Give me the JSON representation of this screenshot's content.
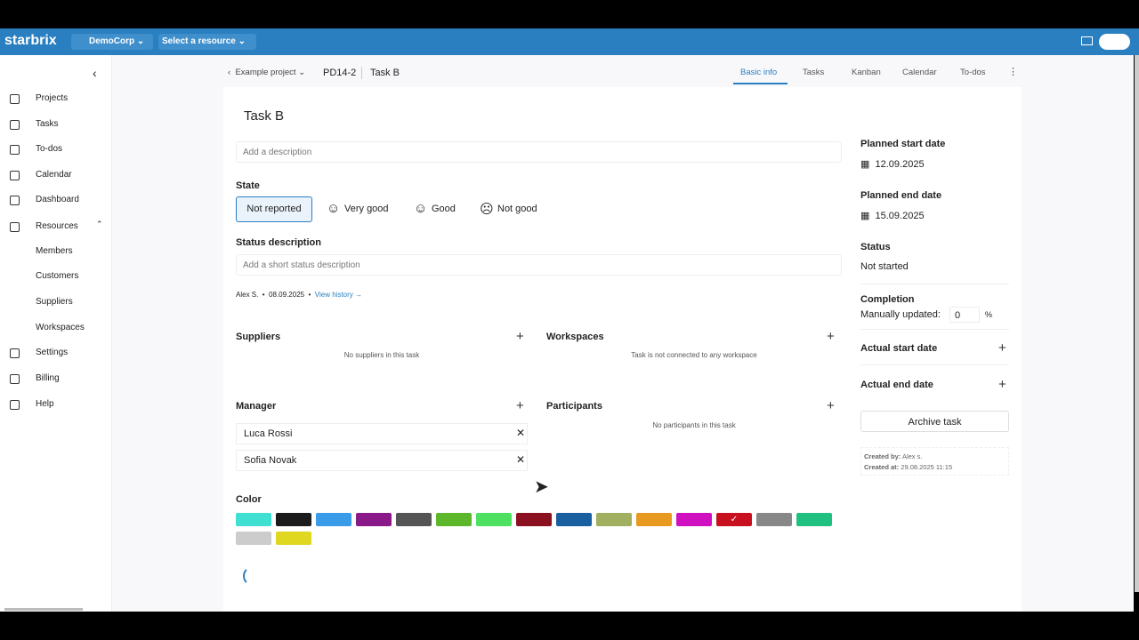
{
  "header": {
    "logo": "starbrix",
    "org": "DemoCorp",
    "resource": "Select a resource"
  },
  "sidebar": {
    "items": [
      "Projects",
      "Tasks",
      "To-dos",
      "Calendar",
      "Dashboard",
      "Resources",
      "Members",
      "Customers",
      "Suppliers",
      "Workspaces",
      "Settings",
      "Billing",
      "Help"
    ]
  },
  "breadcrumb": {
    "project": "Example project",
    "code": "PD14-2",
    "task": "Task B"
  },
  "tabs": [
    "Basic info",
    "Tasks",
    "Kanban",
    "Calendar",
    "To-dos"
  ],
  "task": {
    "title": "Task B",
    "description_placeholder": "Add a description",
    "state_label": "State",
    "states": [
      "Not reported",
      "Very good",
      "Good",
      "Not good"
    ],
    "status_description_label": "Status description",
    "status_placeholder": "Add a short status description",
    "author": "Alex S.",
    "date": "08.09.2025",
    "history": "View history →"
  },
  "suppliers": {
    "title": "Suppliers",
    "empty": "No suppliers in this task"
  },
  "workspaces": {
    "title": "Workspaces",
    "empty": "Task is not connected to any workspace"
  },
  "manager": {
    "title": "Manager",
    "people": [
      "Luca Rossi",
      "Sofia Novak"
    ]
  },
  "participants": {
    "title": "Participants",
    "empty": "No participants in this task"
  },
  "color": {
    "title": "Color",
    "swatches": [
      "#3fe0d2",
      "#1b1b1b",
      "#3a9be8",
      "#8a1a8a",
      "#555555",
      "#5cb82a",
      "#4ee060",
      "#8b1020",
      "#1a5fa0",
      "#a0b060",
      "#e89a20",
      "#d010c0",
      "#c8101e",
      "#888888",
      "#20c080",
      "#cccccc",
      "#e0d820"
    ],
    "selected": 12
  },
  "details": {
    "planned_start_label": "Planned start date",
    "planned_start": "12.09.2025",
    "planned_end_label": "Planned end date",
    "planned_end": "15.09.2025",
    "status_label": "Status",
    "status": "Not started",
    "completion_label": "Completion",
    "manually_updated": "Manually updated:",
    "completion_value": "0",
    "completion_unit": "%",
    "actual_start_label": "Actual start date",
    "actual_end_label": "Actual end date",
    "archive": "Archive task",
    "created_by_label": "Created by:",
    "created_by": "Alex s.",
    "created_at_label": "Created at:",
    "created_at": "29.08.2025 11:15"
  }
}
